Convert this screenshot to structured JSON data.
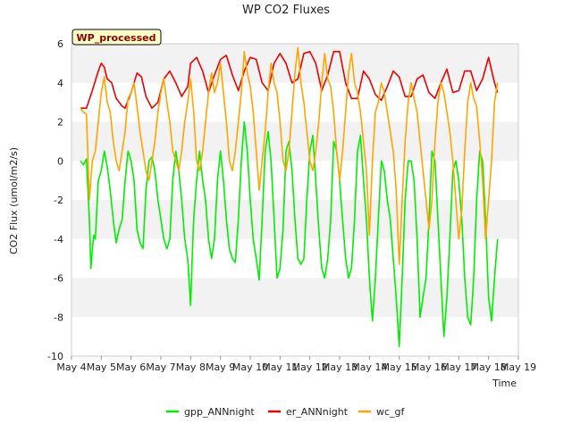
{
  "chart_data": {
    "type": "line",
    "title": "WP CO2 Fluxes",
    "xlabel": "Time",
    "ylabel": "CO2 Flux (umol/m2/s)",
    "badge": "WP_processed",
    "ylim": [
      -10,
      6
    ],
    "yticks": [
      -10,
      -8,
      -6,
      -4,
      -2,
      0,
      2,
      4,
      6
    ],
    "xlim": [
      4,
      19
    ],
    "xticks": [
      4,
      5,
      6,
      7,
      8,
      9,
      10,
      11,
      12,
      13,
      14,
      15,
      16,
      17,
      18,
      19
    ],
    "xtick_labels": [
      "May 4",
      "May 5",
      "May 6",
      "May 7",
      "May 8",
      "May 9",
      "May 10",
      "May 11",
      "May 12",
      "May 13",
      "May 14",
      "May 15",
      "May 16",
      "May 17",
      "May 18",
      "May 19"
    ],
    "grid_bands": true,
    "legend_position": "bottom-center",
    "series": [
      {
        "name": "gpp_ANNnight",
        "color": "#00ee00",
        "x": [
          4.3,
          4.4,
          4.5,
          4.6,
          4.65,
          4.7,
          4.75,
          4.8,
          4.9,
          5.0,
          5.1,
          5.2,
          5.3,
          5.4,
          5.5,
          5.6,
          5.7,
          5.8,
          5.9,
          6.0,
          6.1,
          6.2,
          6.3,
          6.4,
          6.5,
          6.6,
          6.7,
          6.8,
          6.9,
          7.0,
          7.1,
          7.2,
          7.3,
          7.4,
          7.5,
          7.6,
          7.7,
          7.8,
          7.9,
          8.0,
          8.05,
          8.1,
          8.2,
          8.3,
          8.4,
          8.5,
          8.6,
          8.7,
          8.8,
          8.9,
          9.0,
          9.1,
          9.2,
          9.3,
          9.4,
          9.5,
          9.6,
          9.7,
          9.8,
          9.9,
          10.0,
          10.1,
          10.2,
          10.3,
          10.4,
          10.5,
          10.6,
          10.7,
          10.8,
          10.9,
          11.0,
          11.1,
          11.2,
          11.3,
          11.4,
          11.5,
          11.6,
          11.7,
          11.8,
          11.9,
          12.0,
          12.1,
          12.2,
          12.3,
          12.4,
          12.5,
          12.6,
          12.7,
          12.8,
          12.9,
          13.0,
          13.1,
          13.2,
          13.3,
          13.4,
          13.5,
          13.6,
          13.7,
          13.8,
          13.9,
          14.0,
          14.1,
          14.2,
          14.3,
          14.4,
          14.5,
          14.6,
          14.7,
          14.8,
          14.9,
          15.0,
          15.1,
          15.2,
          15.3,
          15.4,
          15.5,
          15.6,
          15.7,
          15.8,
          15.9,
          16.0,
          16.1,
          16.2,
          16.3,
          16.4,
          16.5,
          16.6,
          16.7,
          16.8,
          16.9,
          17.0,
          17.1,
          17.2,
          17.3,
          17.4,
          17.5,
          17.6,
          17.7,
          17.8,
          17.9,
          18.0,
          18.1,
          18.2,
          18.3
        ],
        "y": [
          0.0,
          -0.2,
          0.1,
          -3.0,
          -5.5,
          -4.5,
          -3.8,
          -4.0,
          -1.0,
          -0.5,
          0.5,
          -0.3,
          -1.5,
          -3.0,
          -4.2,
          -3.5,
          -3.0,
          -1.0,
          0.5,
          0.0,
          -1.0,
          -3.5,
          -4.2,
          -4.5,
          -1.5,
          0.0,
          0.2,
          -0.5,
          -2.0,
          -3.0,
          -4.0,
          -4.5,
          -4.0,
          -1.0,
          0.5,
          -0.5,
          -2.0,
          -4.0,
          -5.0,
          -7.4,
          -5.0,
          -3.0,
          -1.0,
          0.5,
          -1.0,
          -2.0,
          -4.0,
          -5.0,
          -4.0,
          -1.0,
          0.5,
          -1.0,
          -3.0,
          -4.5,
          -5.0,
          -5.2,
          -3.0,
          0.0,
          2.0,
          0.5,
          -2.0,
          -4.0,
          -5.0,
          -6.1,
          -3.0,
          0.5,
          1.5,
          0.0,
          -3.0,
          -6.0,
          -5.5,
          -3.5,
          0.5,
          1.0,
          -0.5,
          -3.0,
          -5.0,
          -5.3,
          -5.0,
          -2.0,
          0.5,
          1.3,
          -1.0,
          -3.5,
          -5.5,
          -6.0,
          -5.0,
          -3.0,
          1.0,
          0.5,
          -1.0,
          -3.0,
          -5.0,
          -6.0,
          -5.5,
          -3.0,
          0.5,
          1.3,
          -1.0,
          -3.0,
          -6.0,
          -8.2,
          -6.0,
          -3.0,
          0.0,
          -0.5,
          -2.0,
          -3.0,
          -5.0,
          -7.0,
          -9.5,
          -6.0,
          -2.0,
          0.0,
          0.0,
          -1.0,
          -4.0,
          -8.0,
          -7.0,
          -6.0,
          -3.0,
          0.5,
          0.0,
          -3.0,
          -6.0,
          -9.0,
          -7.0,
          -4.0,
          -0.5,
          0.0,
          -1.0,
          -3.0,
          -6.0,
          -8.0,
          -8.4,
          -6.0,
          -2.0,
          0.5,
          0.0,
          -3.0,
          -7.0,
          -8.2,
          -6.0,
          -4.0
        ]
      },
      {
        "name": "er_ANNnight",
        "color": "#ee0000",
        "x": [
          4.3,
          4.5,
          4.7,
          4.9,
          5.0,
          5.1,
          5.2,
          5.35,
          5.5,
          5.7,
          5.8,
          6.0,
          6.2,
          6.35,
          6.5,
          6.7,
          6.9,
          7.1,
          7.3,
          7.5,
          7.7,
          7.9,
          8.0,
          8.2,
          8.4,
          8.6,
          8.8,
          9.0,
          9.2,
          9.4,
          9.6,
          9.8,
          10.0,
          10.2,
          10.4,
          10.6,
          10.8,
          11.0,
          11.2,
          11.4,
          11.6,
          11.8,
          12.0,
          12.2,
          12.4,
          12.6,
          12.8,
          13.0,
          13.2,
          13.4,
          13.6,
          13.8,
          14.0,
          14.2,
          14.4,
          14.6,
          14.8,
          15.0,
          15.2,
          15.4,
          15.6,
          15.8,
          16.0,
          16.2,
          16.4,
          16.6,
          16.8,
          17.0,
          17.2,
          17.4,
          17.6,
          17.8,
          18.0,
          18.2,
          18.3
        ],
        "y": [
          2.7,
          2.7,
          3.6,
          4.6,
          5.0,
          4.8,
          4.2,
          4.0,
          3.2,
          2.8,
          2.7,
          3.5,
          4.5,
          4.3,
          3.3,
          2.7,
          3.0,
          4.2,
          4.6,
          4.0,
          3.3,
          3.8,
          5.0,
          5.3,
          4.6,
          3.5,
          4.4,
          5.2,
          5.4,
          4.4,
          3.6,
          4.6,
          5.3,
          5.2,
          4.0,
          3.6,
          5.0,
          5.5,
          5.0,
          4.0,
          4.2,
          5.5,
          5.6,
          5.0,
          3.6,
          4.4,
          5.6,
          5.6,
          4.0,
          3.2,
          3.2,
          4.6,
          4.2,
          3.4,
          3.1,
          3.8,
          4.6,
          4.3,
          3.3,
          3.3,
          4.2,
          4.4,
          3.5,
          3.2,
          4.0,
          4.7,
          3.5,
          3.6,
          4.6,
          4.6,
          3.6,
          4.2,
          5.3,
          4.0,
          3.5
        ]
      },
      {
        "name": "wc_gf",
        "color": "#ffa500",
        "x": [
          4.3,
          4.4,
          4.5,
          4.6,
          4.7,
          4.8,
          4.9,
          5.0,
          5.1,
          5.2,
          5.3,
          5.4,
          5.5,
          5.6,
          5.7,
          5.8,
          5.9,
          6.0,
          6.1,
          6.2,
          6.3,
          6.4,
          6.5,
          6.6,
          6.7,
          6.8,
          6.9,
          7.0,
          7.1,
          7.2,
          7.3,
          7.4,
          7.5,
          7.6,
          7.7,
          7.8,
          7.9,
          8.0,
          8.1,
          8.2,
          8.3,
          8.4,
          8.5,
          8.6,
          8.7,
          8.8,
          8.9,
          9.0,
          9.1,
          9.2,
          9.3,
          9.4,
          9.5,
          9.6,
          9.7,
          9.8,
          9.9,
          10.0,
          10.1,
          10.2,
          10.3,
          10.4,
          10.5,
          10.6,
          10.7,
          10.8,
          10.9,
          11.0,
          11.1,
          11.2,
          11.3,
          11.4,
          11.5,
          11.6,
          11.7,
          11.8,
          11.9,
          12.0,
          12.1,
          12.2,
          12.3,
          12.4,
          12.5,
          12.6,
          12.7,
          12.8,
          12.9,
          13.0,
          13.1,
          13.2,
          13.3,
          13.4,
          13.5,
          13.6,
          13.7,
          13.8,
          13.9,
          14.0,
          14.1,
          14.2,
          14.3,
          14.4,
          14.5,
          14.6,
          14.7,
          14.8,
          14.9,
          15.0,
          15.1,
          15.2,
          15.3,
          15.4,
          15.5,
          15.6,
          15.7,
          15.8,
          15.9,
          16.0,
          16.1,
          16.2,
          16.3,
          16.4,
          16.5,
          16.6,
          16.7,
          16.8,
          16.9,
          17.0,
          17.1,
          17.2,
          17.3,
          17.4,
          17.5,
          17.6,
          17.7,
          17.8,
          17.9,
          18.0,
          18.1,
          18.2,
          18.3
        ],
        "y": [
          2.7,
          2.5,
          2.4,
          -2.0,
          0.0,
          0.5,
          2.0,
          3.5,
          4.3,
          3.0,
          2.5,
          1.0,
          0.0,
          -0.5,
          0.5,
          1.5,
          3.2,
          3.5,
          4.0,
          2.8,
          1.5,
          0.5,
          -0.5,
          -1.0,
          0.0,
          1.0,
          2.5,
          3.5,
          4.2,
          3.0,
          2.0,
          0.5,
          0.0,
          -0.5,
          0.5,
          2.0,
          3.0,
          4.2,
          2.5,
          0.0,
          -0.5,
          0.5,
          2.0,
          3.5,
          4.5,
          3.5,
          4.0,
          5.0,
          3.5,
          2.0,
          0.0,
          -0.5,
          0.5,
          2.0,
          3.5,
          5.6,
          4.5,
          3.8,
          2.5,
          0.5,
          -1.5,
          0.0,
          1.5,
          3.5,
          5.0,
          4.0,
          3.5,
          2.0,
          0.0,
          -0.5,
          0.5,
          2.5,
          4.5,
          5.8,
          4.0,
          3.0,
          1.5,
          0.0,
          -0.5,
          0.5,
          2.0,
          4.0,
          5.5,
          4.2,
          3.8,
          2.5,
          0.5,
          -1.0,
          0.5,
          2.5,
          4.5,
          5.5,
          4.0,
          3.5,
          2.5,
          1.0,
          -0.5,
          -3.8,
          0.0,
          2.5,
          3.0,
          4.0,
          3.5,
          2.5,
          1.5,
          0.5,
          -1.5,
          -5.3,
          -2.0,
          1.0,
          3.0,
          4.0,
          3.2,
          2.5,
          1.0,
          -0.5,
          -2.0,
          -3.5,
          -2.0,
          1.0,
          3.0,
          4.0,
          3.5,
          2.5,
          1.5,
          0.0,
          -2.0,
          -4.0,
          -2.5,
          0.5,
          3.0,
          4.0,
          3.2,
          2.8,
          1.0,
          -1.0,
          -4.0,
          -2.0,
          0.0,
          3.0,
          4.0
        ]
      }
    ]
  }
}
